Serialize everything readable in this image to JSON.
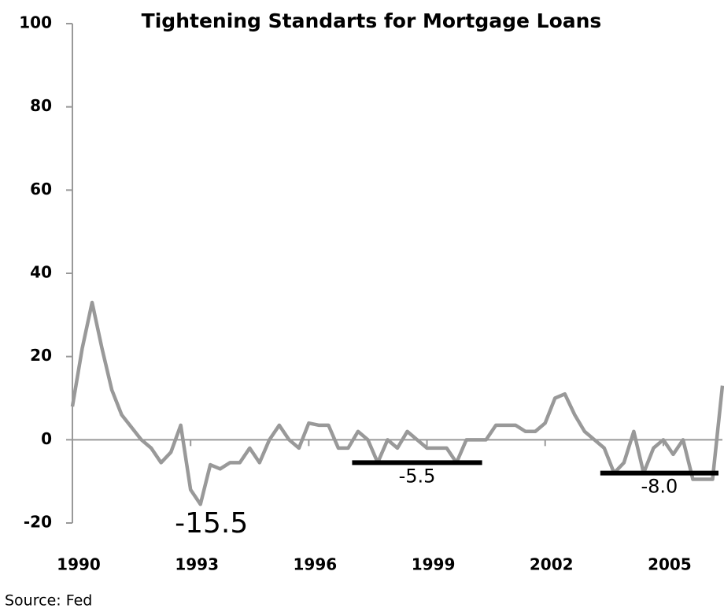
{
  "chart_data": {
    "type": "line",
    "title": "Tightening Standarts for Mortgage Loans",
    "note": "Source: Fed",
    "ylim": [
      -20,
      100
    ],
    "yticks": [
      -20,
      0,
      20,
      40,
      60,
      80,
      100
    ],
    "xlim": [
      1990,
      2006.5
    ],
    "xticks": [
      1990,
      1993,
      1996,
      1999,
      2002,
      2005
    ],
    "series": [
      {
        "color": "#999999",
        "x": [
          1990,
          1990.25,
          1990.5,
          1990.75,
          1991,
          1991.25,
          1991.5,
          1991.75,
          1992,
          1992.25,
          1992.5,
          1992.75,
          1993,
          1993.25,
          1993.5,
          1993.75,
          1994,
          1994.25,
          1994.5,
          1994.75,
          1995,
          1995.25,
          1995.5,
          1995.75,
          1996,
          1996.25,
          1996.5,
          1996.75,
          1997,
          1997.25,
          1997.5,
          1997.75,
          1998,
          1998.25,
          1998.5,
          1998.75,
          1999,
          1999.25,
          1999.5,
          1999.75,
          2000,
          2000.25,
          2000.5,
          2000.75,
          2001,
          2001.25,
          2001.5,
          2001.75,
          2002,
          2002.25,
          2002.5,
          2002.75,
          2003,
          2003.25,
          2003.5,
          2003.75,
          2004,
          2004.25,
          2004.5,
          2004.75,
          2005,
          2005.25,
          2005.5,
          2005.75,
          2006,
          2006.25,
          2006.5
        ],
        "values": [
          8,
          22,
          33,
          22,
          12,
          6,
          3,
          0,
          -2,
          -5.5,
          -3,
          3.5,
          -12,
          -15.5,
          -6,
          -7,
          -5.5,
          -5.5,
          -2,
          -5.5,
          0,
          3.5,
          0,
          -2,
          4,
          3.5,
          3.5,
          -2,
          -2,
          2,
          0,
          -5.5,
          0,
          -2,
          2,
          0,
          -2,
          -2,
          -2,
          -5.5,
          0,
          0,
          0,
          3.5,
          3.5,
          3.5,
          2,
          2,
          4,
          10,
          11,
          6,
          2,
          0,
          -2,
          -8,
          -5.5,
          2,
          -8,
          -2,
          0,
          -3.5,
          0,
          -9.5,
          -9.5,
          -9.5,
          13
        ]
      }
    ],
    "reference_lines": [
      {
        "label": "-5.5",
        "value": -5.5,
        "x": [
          1997.1,
          2000.4
        ]
      },
      {
        "label": "-8.0",
        "value": -8.0,
        "x": [
          2003.4,
          2006.4
        ]
      }
    ],
    "annotations": [
      {
        "label": "-15.5",
        "value": -15.5,
        "x": 1993.25
      }
    ]
  }
}
